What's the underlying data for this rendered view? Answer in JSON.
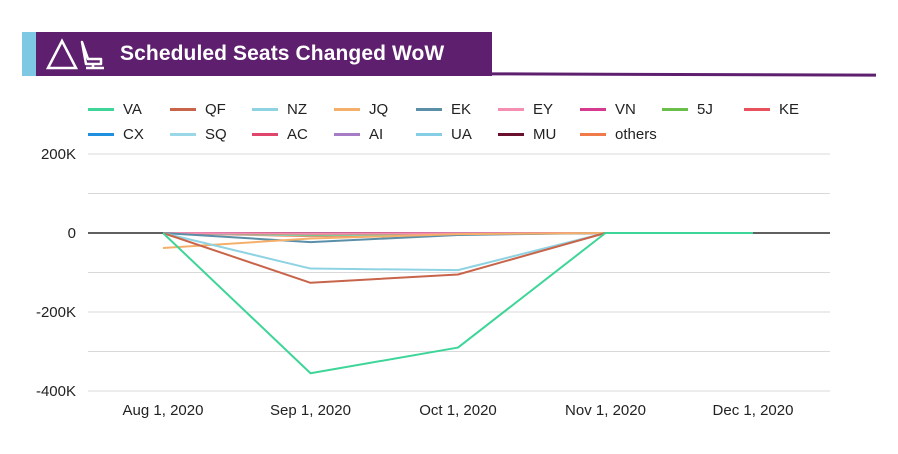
{
  "header": {
    "title": "Scheduled Seats Changed WoW",
    "icon": "airline-seat-icon"
  },
  "colors": {
    "header_bg": "#5e1f6e",
    "header_accent": "#7ec8e3",
    "grid": "#d9d9d9",
    "zero_line": "#000000"
  },
  "chart_data": {
    "type": "line",
    "title": "Scheduled Seats Changed WoW",
    "xlabel": "",
    "ylabel": "",
    "x": [
      "Aug 1, 2020",
      "Sep 1, 2020",
      "Oct 1, 2020",
      "Nov 1, 2020",
      "Dec 1, 2020"
    ],
    "ylim": [
      -400000,
      200000
    ],
    "yticks": [
      200000,
      0,
      -200000,
      -400000
    ],
    "ytick_labels": [
      "200K",
      "0",
      "-200K",
      "-400K"
    ],
    "grid": true,
    "legend_position": "top",
    "series": [
      {
        "name": "VA",
        "color": "#3dd598",
        "values": [
          0,
          -355000,
          -290000,
          0,
          0
        ]
      },
      {
        "name": "QF",
        "color": "#c8644a",
        "values": [
          0,
          -126000,
          -105000,
          0,
          0
        ]
      },
      {
        "name": "NZ",
        "color": "#8fd3e3",
        "values": [
          0,
          -90000,
          -94000,
          0,
          0
        ]
      },
      {
        "name": "JQ",
        "color": "#f4b06b",
        "values": [
          -38000,
          -14000,
          -3000,
          0,
          0
        ]
      },
      {
        "name": "EK",
        "color": "#5b8fa8",
        "values": [
          0,
          -23000,
          -5000,
          0,
          0
        ]
      },
      {
        "name": "EY",
        "color": "#f48fb1",
        "values": [
          0,
          -2000,
          -1000,
          0,
          0
        ]
      },
      {
        "name": "VN",
        "color": "#d63a8f",
        "values": [
          0,
          -1500,
          -1000,
          0,
          0
        ]
      },
      {
        "name": "5J",
        "color": "#6abf4b",
        "values": [
          0,
          -4000,
          -2000,
          0,
          0
        ]
      },
      {
        "name": "KE",
        "color": "#e8505b",
        "values": [
          0,
          -3000,
          -1500,
          0,
          0
        ]
      },
      {
        "name": "CX",
        "color": "#1f8fe0",
        "values": [
          0,
          -2000,
          -1000,
          0,
          0
        ]
      },
      {
        "name": "SQ",
        "color": "#9ad8e8",
        "values": [
          0,
          -6000,
          -3000,
          0,
          0
        ]
      },
      {
        "name": "AC",
        "color": "#e0456b",
        "values": [
          0,
          -1000,
          -500,
          0,
          0
        ]
      },
      {
        "name": "AI",
        "color": "#a67cc6",
        "values": [
          0,
          -800,
          -400,
          0,
          0
        ]
      },
      {
        "name": "UA",
        "color": "#86cde6",
        "values": [
          0,
          -2500,
          -1000,
          0,
          0
        ]
      },
      {
        "name": "MU",
        "color": "#6b0f2e",
        "values": [
          0,
          -600,
          -300,
          0,
          0
        ]
      },
      {
        "name": "others",
        "color": "#f07a4a",
        "values": [
          0,
          -8000,
          -4000,
          0,
          0
        ]
      }
    ]
  }
}
